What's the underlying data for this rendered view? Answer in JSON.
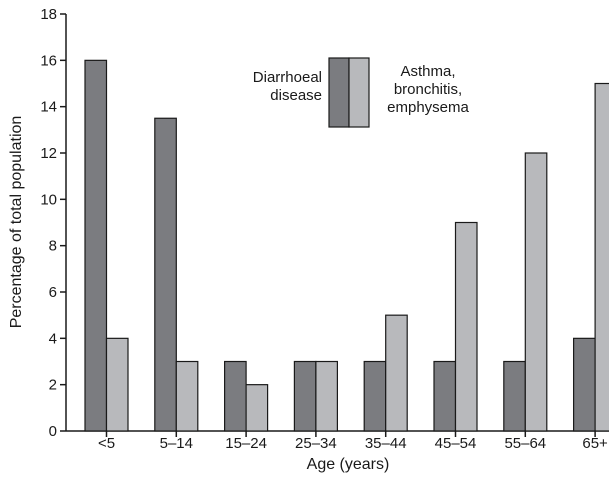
{
  "chart_data": {
    "type": "bar",
    "title": "",
    "xlabel": "Age (years)",
    "ylabel": "Percentage of total population",
    "ylim": [
      0,
      18
    ],
    "yticks": [
      0,
      2,
      4,
      6,
      8,
      10,
      12,
      14,
      16,
      18
    ],
    "categories": [
      "<5",
      "5–14",
      "15–24",
      "25–34",
      "35–44",
      "45–54",
      "55–64",
      "65+"
    ],
    "series": [
      {
        "name": "Diarrhoeal disease",
        "label_lines": [
          "Diarrhoeal",
          "disease"
        ],
        "color": "#7b7c80",
        "values": [
          16,
          13.5,
          3,
          3,
          3,
          3,
          3,
          4
        ]
      },
      {
        "name": "Asthma, bronchitis, emphysema",
        "label_lines": [
          "Asthma,",
          "bronchitis,",
          "emphysema"
        ],
        "color": "#b8b9bc",
        "values": [
          4,
          3,
          2,
          3,
          5,
          9,
          12,
          15
        ]
      }
    ],
    "grid": false,
    "legend_position": "top-center"
  }
}
